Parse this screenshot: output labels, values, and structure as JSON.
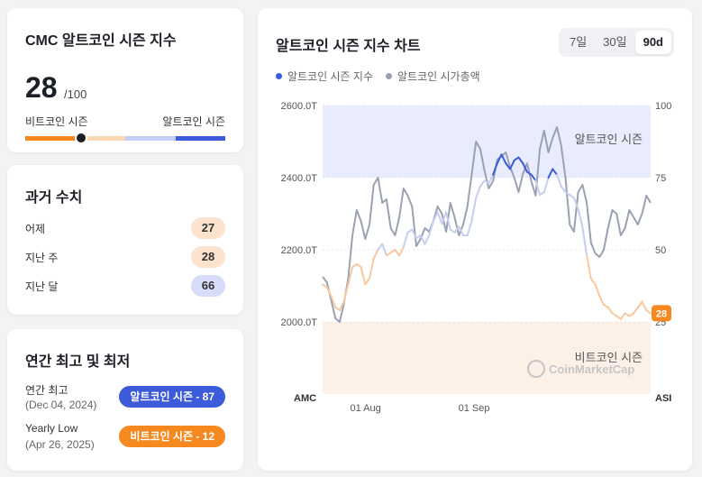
{
  "gauge_card": {
    "title": "CMC 알트코인 시즌 지수",
    "value": "28",
    "max": "/100",
    "left_label": "비트코인 시즌",
    "right_label": "알트코인 시즌",
    "level": 28
  },
  "history_card": {
    "title": "과거 수치",
    "rows": [
      {
        "label": "어제",
        "value": "27"
      },
      {
        "label": "지난 주",
        "value": "28"
      },
      {
        "label": "지난 달",
        "value": "66"
      }
    ]
  },
  "yearly_card": {
    "title": "연간 최고 및 최저",
    "high_label": "연간 최고",
    "high_date": "(Dec 04, 2024)",
    "high_pill": "알트코인 시즌 - 87",
    "low_label": "Yearly Low",
    "low_date": "(Apr 26, 2025)",
    "low_pill": "비트코인 시즌 - 12"
  },
  "chart_card": {
    "title": "알트코인 시즌 지수 차트",
    "ranges": [
      "7일",
      "30일",
      "90d"
    ],
    "active_range": "90d",
    "legend": [
      "알트코인 시즌 지수",
      "알트코인 시가총액"
    ],
    "zone_top_label": "알트코인 시즌",
    "zone_bottom_label": "비트코인 시즌",
    "watermark": "CoinMarketCap",
    "current_badge": "28",
    "left_axis_title": "AMC",
    "right_axis_title": "ASI"
  },
  "colors": {
    "alt_blue": "#3b5bdb",
    "btc_orange": "#f5891f",
    "market_cap_gray": "#9aa2b1",
    "alt_zone": "#e8ecfd",
    "btc_zone": "#fdf0e6"
  },
  "chart_data": {
    "type": "line",
    "x_ticks": [
      "01 Aug",
      "01 Sep"
    ],
    "left_axis": {
      "ticks": [
        "2600.0T",
        "2400.0T",
        "2200.0T",
        "2000.0T"
      ],
      "ylim": [
        1800,
        2600
      ]
    },
    "right_axis": {
      "ticks": [
        "100",
        "75",
        "50",
        "25"
      ],
      "ylim": [
        0,
        100
      ]
    },
    "series": [
      {
        "name": "알트코인 시즌 지수",
        "axis": "right",
        "values": [
          38,
          37,
          34,
          30,
          29,
          32,
          38,
          44,
          45,
          44,
          38,
          40,
          47,
          50,
          52,
          48,
          49,
          50,
          48,
          51,
          56,
          57,
          54,
          55,
          52,
          55,
          60,
          63,
          59,
          63,
          57,
          56,
          58,
          55,
          55,
          60,
          68,
          72,
          74,
          73,
          76,
          80,
          83,
          80,
          78,
          81,
          82,
          80,
          77,
          76,
          74,
          69,
          70,
          75,
          78,
          76,
          72,
          70,
          69,
          68,
          64,
          58,
          48,
          40,
          38,
          34,
          31,
          30,
          28,
          27,
          26,
          28,
          27,
          28,
          30,
          32,
          29,
          28
        ]
      },
      {
        "name": "알트코인 시가총액",
        "axis": "left",
        "values": [
          2125,
          2110,
          2060,
          2010,
          2000,
          2050,
          2120,
          2240,
          2310,
          2280,
          2230,
          2270,
          2380,
          2400,
          2330,
          2340,
          2260,
          2240,
          2290,
          2370,
          2350,
          2320,
          2210,
          2230,
          2260,
          2250,
          2280,
          2320,
          2300,
          2250,
          2330,
          2290,
          2240,
          2270,
          2320,
          2410,
          2500,
          2480,
          2420,
          2370,
          2390,
          2450,
          2460,
          2470,
          2430,
          2400,
          2360,
          2410,
          2440,
          2390,
          2350,
          2480,
          2530,
          2470,
          2510,
          2540,
          2490,
          2400,
          2270,
          2250,
          2360,
          2380,
          2330,
          2220,
          2190,
          2180,
          2200,
          2260,
          2310,
          2300,
          2240,
          2260,
          2310,
          2290,
          2270,
          2300,
          2350,
          2330
        ]
      }
    ]
  }
}
